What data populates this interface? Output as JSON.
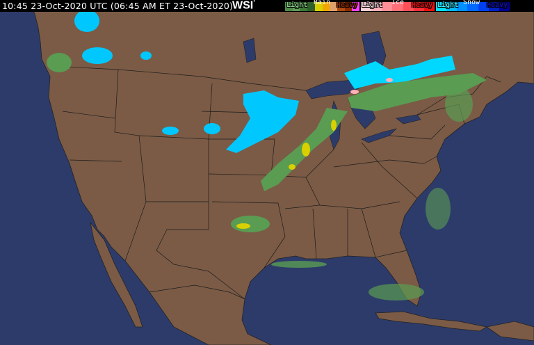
{
  "header": {
    "timestamp": "10:45 23-Oct-2020 UTC  (06:45 AM ET 23-Oct-2020)",
    "logo": "WSI"
  },
  "legend": {
    "rain": {
      "title": "Rain",
      "light": "Light",
      "heavy": "Heavy",
      "colors": [
        "#4f8a4b",
        "#5d9e56",
        "#3c7a36",
        "#2f5f2a",
        "#d8d000",
        "#f0a800",
        "#e2a06a",
        "#b04a10",
        "#8a2a00",
        "#ff40ff"
      ]
    },
    "ice": {
      "title": "Ice",
      "light": "Light",
      "heavy": "Heavy",
      "colors": [
        "#ffd0d8",
        "#ffb0b8",
        "#ff9098",
        "#ff7078",
        "#ff5058",
        "#ff3038",
        "#ee1010"
      ]
    },
    "snow": {
      "title": "Snow",
      "light": "Light",
      "heavy": "Heavy",
      "colors": [
        "#00e0ff",
        "#00b8ff",
        "#0090ff",
        "#0068ff",
        "#0040f0",
        "#0020c0",
        "#000090"
      ]
    }
  },
  "colors": {
    "ocean": "#2d3b6a",
    "land": "#7b5b46",
    "borders": "#1a1a1a"
  }
}
